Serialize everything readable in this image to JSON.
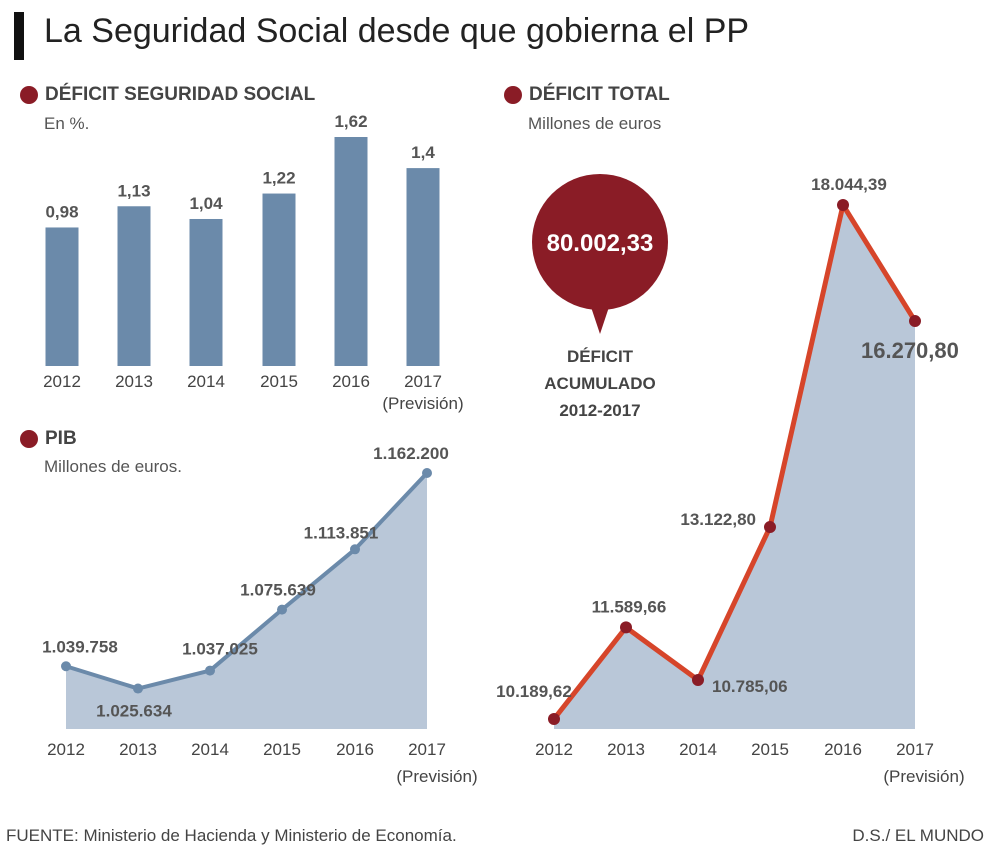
{
  "header": {
    "title": "La Seguridad Social desde que gobierna el PP"
  },
  "colors": {
    "accent": "#8a1c26",
    "bar": "#6b8aaa",
    "area": "#b9c7d8",
    "pib_line": "#6b8aaa",
    "deficit_line": "#d6452a"
  },
  "sections": {
    "deficit_ss": {
      "title": "DÉFICIT SEGURIDAD SOCIAL",
      "subtitle": "En %."
    },
    "pib": {
      "title": "PIB",
      "subtitle": "Millones de euros."
    },
    "deficit_total": {
      "title": "DÉFICIT TOTAL",
      "subtitle": "Millones de euros"
    }
  },
  "callout": {
    "value": "80.002,33",
    "label_lines": [
      "DÉFICIT",
      "ACUMULADO",
      "2012-2017"
    ]
  },
  "chart_data": [
    {
      "type": "bar",
      "title": "DÉFICIT SEGURIDAD SOCIAL",
      "subtitle": "En %.",
      "categories": [
        "2012",
        "2013",
        "2014",
        "2015",
        "2016",
        "2017"
      ],
      "note": "(Previsión)",
      "values": [
        0.98,
        1.13,
        1.04,
        1.22,
        1.62,
        1.4
      ],
      "value_labels": [
        "0,98",
        "1,13",
        "1,04",
        "1,22",
        "1,62",
        "1,4"
      ],
      "ylim": [
        0,
        1.62
      ]
    },
    {
      "type": "area",
      "title": "PIB",
      "subtitle": "Millones de euros.",
      "categories": [
        "2012",
        "2013",
        "2014",
        "2015",
        "2016",
        "2017"
      ],
      "note": "(Previsión)",
      "values": [
        1039758,
        1025634,
        1037025,
        1075639,
        1113851,
        1162200
      ],
      "value_labels": [
        "1.039.758",
        "1.025.634",
        "1.037.025",
        "1.075.639",
        "1.113.851",
        "1.162.200"
      ],
      "ylim": [
        1000000,
        1162200
      ]
    },
    {
      "type": "area",
      "title": "DÉFICIT TOTAL",
      "subtitle": "Millones de euros",
      "categories": [
        "2012",
        "2013",
        "2014",
        "2015",
        "2016",
        "2017"
      ],
      "note": "(Previsión)",
      "values": [
        10189.62,
        11589.66,
        10785.06,
        13122.8,
        18044.39,
        16270.8
      ],
      "value_labels": [
        "10.189,62",
        "11.589,66",
        "10.785,06",
        "13.122,80",
        "18.044,39",
        "16.270,80"
      ],
      "ylim": [
        10000,
        18044.39
      ]
    }
  ],
  "footer": {
    "source": "FUENTE: Ministerio de Hacienda y Ministerio de Economía.",
    "credit": "D.S./ EL MUNDO"
  }
}
